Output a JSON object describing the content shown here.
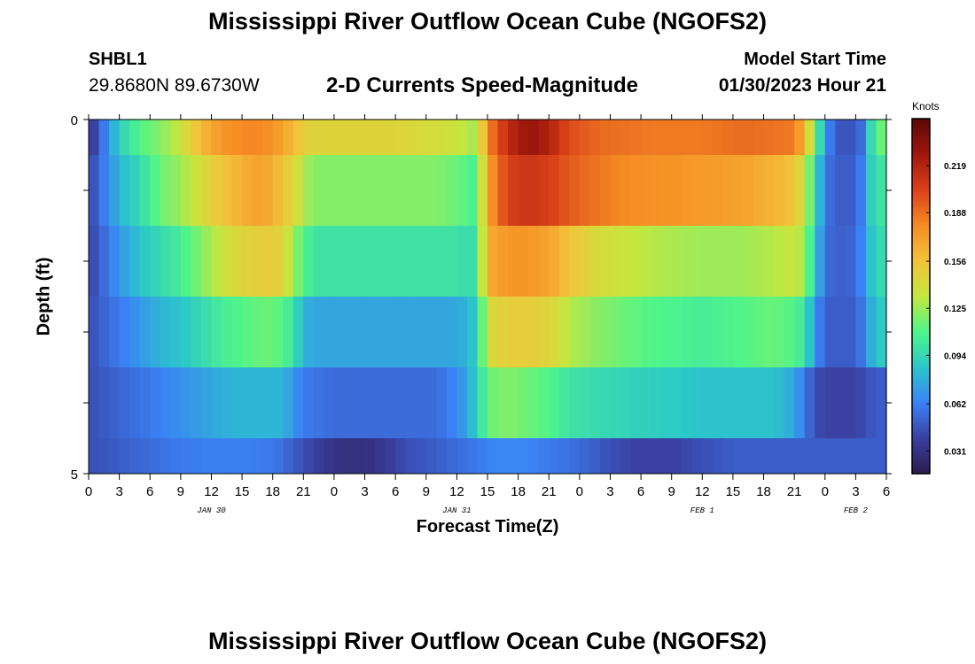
{
  "header": {
    "title": "Mississippi River Outflow Ocean Cube (NGOFS2)",
    "station_id": "SHBL1",
    "station_coords": "29.8680N  89.6730W",
    "subtitle": "2-D Currents Speed-Magnitude",
    "start_label": "Model Start Time",
    "start_value": "01/30/2023 Hour 21"
  },
  "footer": {
    "title": "Mississippi River Outflow Ocean Cube (NGOFS2)"
  },
  "chart_data": {
    "type": "heatmap",
    "title": "2-D Currents Speed-Magnitude",
    "xlabel": "Forecast Time(Z)",
    "ylabel": "Depth (ft)",
    "x_unit": "hours since 2023-01-30 00Z",
    "xlim": [
      0,
      78
    ],
    "ylim": [
      0,
      5
    ],
    "y_ticks": [
      "0",
      "5"
    ],
    "x_tick_hours": [
      0,
      3,
      6,
      9,
      12,
      15,
      18,
      21,
      24,
      27,
      30,
      33,
      36,
      39,
      42,
      45,
      48,
      51,
      54,
      57,
      60,
      63,
      66,
      69,
      72,
      75,
      78
    ],
    "x_tick_labels": [
      "0",
      "3",
      "6",
      "9",
      "12",
      "15",
      "18",
      "21",
      "0",
      "3",
      "6",
      "9",
      "12",
      "15",
      "18",
      "21",
      "0",
      "3",
      "6",
      "9",
      "12",
      "15",
      "18",
      "21",
      "0",
      "3",
      "6"
    ],
    "date_labels": [
      {
        "text": "JAN 30",
        "hour": 12
      },
      {
        "text": "JAN 31",
        "hour": 36
      },
      {
        "text": "FEB 1",
        "hour": 60
      },
      {
        "text": "FEB 2",
        "hour": 75
      }
    ],
    "colorbar": {
      "unit": "Knots",
      "min": 0.016,
      "max": 0.25,
      "ticks": [
        0.031,
        0.062,
        0.094,
        0.125,
        0.156,
        0.188,
        0.219
      ],
      "tick_labels": [
        "0.031",
        "0.062",
        "0.094",
        "0.125",
        "0.156",
        "0.188",
        "0.219"
      ],
      "colors": [
        "#2b1b4f",
        "#3a3fa0",
        "#3b82f6",
        "#2bc7c9",
        "#4ff58a",
        "#c6e63e",
        "#f3c33a",
        "#f68a24",
        "#d9411a",
        "#a0170c",
        "#5a0805"
      ]
    },
    "layers": [
      {
        "depth_top": 0.0,
        "depth_bottom": 0.5,
        "keys": [
          [
            0,
            0.03
          ],
          [
            0.5,
            0.04
          ],
          [
            1,
            0.05
          ],
          [
            2,
            0.07
          ],
          [
            3,
            0.09
          ],
          [
            4,
            0.1
          ],
          [
            5,
            0.11
          ],
          [
            6,
            0.115
          ],
          [
            7,
            0.12
          ],
          [
            9,
            0.135
          ],
          [
            11,
            0.16
          ],
          [
            13,
            0.175
          ],
          [
            15,
            0.18
          ],
          [
            17,
            0.18
          ],
          [
            18,
            0.175
          ],
          [
            19,
            0.17
          ],
          [
            20,
            0.16
          ],
          [
            21,
            0.15
          ],
          [
            22,
            0.145
          ],
          [
            30,
            0.145
          ],
          [
            34,
            0.14
          ],
          [
            36,
            0.135
          ],
          [
            37,
            0.13
          ],
          [
            38,
            0.125
          ],
          [
            39,
            0.18
          ],
          [
            41,
            0.215
          ],
          [
            43,
            0.23
          ],
          [
            45,
            0.22
          ],
          [
            47,
            0.2
          ],
          [
            50,
            0.19
          ],
          [
            55,
            0.185
          ],
          [
            60,
            0.185
          ],
          [
            64,
            0.19
          ],
          [
            69,
            0.185
          ],
          [
            70,
            0.16
          ],
          [
            71,
            0.12
          ],
          [
            72,
            0.07
          ],
          [
            73,
            0.05
          ],
          [
            74,
            0.045
          ],
          [
            75,
            0.05
          ],
          [
            76,
            0.06
          ],
          [
            77,
            0.13
          ],
          [
            78,
            0.1
          ]
        ]
      },
      {
        "depth_top": 0.5,
        "depth_bottom": 1.5,
        "keys": [
          [
            0,
            0.04
          ],
          [
            1,
            0.055
          ],
          [
            3,
            0.08
          ],
          [
            5,
            0.095
          ],
          [
            7,
            0.115
          ],
          [
            9,
            0.125
          ],
          [
            11,
            0.14
          ],
          [
            13,
            0.155
          ],
          [
            15,
            0.165
          ],
          [
            17,
            0.17
          ],
          [
            18,
            0.165
          ],
          [
            19,
            0.155
          ],
          [
            20,
            0.145
          ],
          [
            21,
            0.13
          ],
          [
            22,
            0.12
          ],
          [
            30,
            0.12
          ],
          [
            34,
            0.12
          ],
          [
            36,
            0.115
          ],
          [
            37,
            0.11
          ],
          [
            38,
            0.105
          ],
          [
            39,
            0.17
          ],
          [
            41,
            0.205
          ],
          [
            43,
            0.21
          ],
          [
            45,
            0.205
          ],
          [
            47,
            0.195
          ],
          [
            52,
            0.18
          ],
          [
            58,
            0.175
          ],
          [
            64,
            0.17
          ],
          [
            68,
            0.16
          ],
          [
            69,
            0.155
          ],
          [
            70,
            0.135
          ],
          [
            71,
            0.1
          ],
          [
            72,
            0.06
          ],
          [
            73,
            0.05
          ],
          [
            75,
            0.05
          ],
          [
            76,
            0.07
          ],
          [
            77,
            0.11
          ],
          [
            78,
            0.09
          ]
        ]
      },
      {
        "depth_top": 1.5,
        "depth_bottom": 2.5,
        "keys": [
          [
            0,
            0.04
          ],
          [
            1,
            0.05
          ],
          [
            3,
            0.07
          ],
          [
            5,
            0.085
          ],
          [
            7,
            0.095
          ],
          [
            9,
            0.105
          ],
          [
            11,
            0.12
          ],
          [
            13,
            0.135
          ],
          [
            15,
            0.145
          ],
          [
            17,
            0.15
          ],
          [
            18,
            0.15
          ],
          [
            19,
            0.145
          ],
          [
            20,
            0.125
          ],
          [
            21,
            0.11
          ],
          [
            22,
            0.1
          ],
          [
            30,
            0.1
          ],
          [
            34,
            0.1
          ],
          [
            36,
            0.1
          ],
          [
            37,
            0.095
          ],
          [
            38,
            0.1
          ],
          [
            39,
            0.165
          ],
          [
            41,
            0.175
          ],
          [
            43,
            0.175
          ],
          [
            45,
            0.17
          ],
          [
            47,
            0.155
          ],
          [
            50,
            0.14
          ],
          [
            55,
            0.13
          ],
          [
            60,
            0.125
          ],
          [
            64,
            0.125
          ],
          [
            67,
            0.13
          ],
          [
            69,
            0.135
          ],
          [
            70,
            0.125
          ],
          [
            71,
            0.09
          ],
          [
            72,
            0.055
          ],
          [
            74,
            0.05
          ],
          [
            75,
            0.055
          ],
          [
            76,
            0.07
          ],
          [
            77,
            0.1
          ],
          [
            78,
            0.09
          ]
        ]
      },
      {
        "depth_top": 2.5,
        "depth_bottom": 3.5,
        "keys": [
          [
            0,
            0.045
          ],
          [
            1,
            0.05
          ],
          [
            3,
            0.06
          ],
          [
            5,
            0.07
          ],
          [
            7,
            0.08
          ],
          [
            9,
            0.085
          ],
          [
            11,
            0.095
          ],
          [
            13,
            0.105
          ],
          [
            15,
            0.11
          ],
          [
            17,
            0.115
          ],
          [
            18,
            0.115
          ],
          [
            19,
            0.11
          ],
          [
            20,
            0.1
          ],
          [
            21,
            0.08
          ],
          [
            22,
            0.075
          ],
          [
            30,
            0.075
          ],
          [
            34,
            0.075
          ],
          [
            36,
            0.075
          ],
          [
            37,
            0.08
          ],
          [
            38,
            0.09
          ],
          [
            39,
            0.14
          ],
          [
            41,
            0.15
          ],
          [
            43,
            0.15
          ],
          [
            45,
            0.145
          ],
          [
            47,
            0.13
          ],
          [
            50,
            0.12
          ],
          [
            55,
            0.11
          ],
          [
            60,
            0.105
          ],
          [
            64,
            0.11
          ],
          [
            67,
            0.115
          ],
          [
            69,
            0.11
          ],
          [
            70,
            0.1
          ],
          [
            71,
            0.07
          ],
          [
            72,
            0.05
          ],
          [
            75,
            0.05
          ],
          [
            76,
            0.065
          ],
          [
            77,
            0.09
          ],
          [
            78,
            0.085
          ]
        ]
      },
      {
        "depth_top": 3.5,
        "depth_bottom": 4.5,
        "keys": [
          [
            0,
            0.045
          ],
          [
            2,
            0.05
          ],
          [
            4,
            0.055
          ],
          [
            6,
            0.06
          ],
          [
            8,
            0.065
          ],
          [
            10,
            0.07
          ],
          [
            12,
            0.075
          ],
          [
            14,
            0.08
          ],
          [
            16,
            0.08
          ],
          [
            18,
            0.08
          ],
          [
            19,
            0.08
          ],
          [
            20,
            0.07
          ],
          [
            21,
            0.06
          ],
          [
            24,
            0.055
          ],
          [
            30,
            0.055
          ],
          [
            34,
            0.055
          ],
          [
            35,
            0.06
          ],
          [
            36,
            0.065
          ],
          [
            37,
            0.075
          ],
          [
            38,
            0.09
          ],
          [
            39,
            0.115
          ],
          [
            41,
            0.12
          ],
          [
            43,
            0.115
          ],
          [
            45,
            0.11
          ],
          [
            47,
            0.1
          ],
          [
            50,
            0.095
          ],
          [
            55,
            0.09
          ],
          [
            60,
            0.085
          ],
          [
            64,
            0.085
          ],
          [
            67,
            0.085
          ],
          [
            69,
            0.075
          ],
          [
            70,
            0.06
          ],
          [
            71,
            0.045
          ],
          [
            72,
            0.04
          ],
          [
            75,
            0.04
          ],
          [
            76,
            0.045
          ],
          [
            77,
            0.05
          ],
          [
            78,
            0.05
          ]
        ]
      },
      {
        "depth_top": 4.5,
        "depth_bottom": 5.0,
        "keys": [
          [
            0,
            0.045
          ],
          [
            3,
            0.05
          ],
          [
            6,
            0.055
          ],
          [
            9,
            0.06
          ],
          [
            12,
            0.062
          ],
          [
            15,
            0.062
          ],
          [
            18,
            0.06
          ],
          [
            19,
            0.055
          ],
          [
            21,
            0.045
          ],
          [
            23,
            0.035
          ],
          [
            25,
            0.03
          ],
          [
            27,
            0.03
          ],
          [
            29,
            0.035
          ],
          [
            31,
            0.045
          ],
          [
            34,
            0.05
          ],
          [
            36,
            0.055
          ],
          [
            38,
            0.06
          ],
          [
            40,
            0.065
          ],
          [
            42,
            0.065
          ],
          [
            45,
            0.06
          ],
          [
            48,
            0.055
          ],
          [
            51,
            0.045
          ],
          [
            54,
            0.04
          ],
          [
            57,
            0.04
          ],
          [
            60,
            0.045
          ],
          [
            63,
            0.05
          ],
          [
            66,
            0.05
          ],
          [
            69,
            0.05
          ],
          [
            72,
            0.05
          ],
          [
            75,
            0.05
          ],
          [
            78,
            0.05
          ]
        ]
      }
    ]
  }
}
